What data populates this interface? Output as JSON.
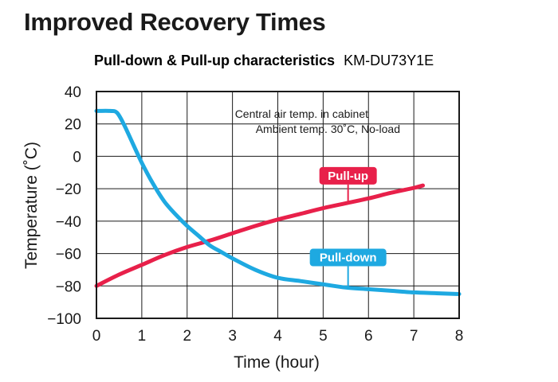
{
  "page_title": "Improved Recovery Times",
  "chart_data": {
    "type": "line",
    "title": "Pull-down & Pull-up characteristics",
    "model": "KM-DU73Y1E",
    "xlabel": "Time (hour)",
    "ylabel": "Temperature (˚C)",
    "xlim": [
      0,
      8
    ],
    "ylim": [
      -100,
      40
    ],
    "xticks": [
      "0",
      "1",
      "2",
      "3",
      "4",
      "5",
      "6",
      "7",
      "8"
    ],
    "yticks": [
      "40",
      "20",
      "0",
      "−20",
      "−40",
      "−60",
      "−80",
      "−100"
    ],
    "grid": true,
    "notes": [
      "Central air temp. in cabinet",
      "Ambient temp. 30˚C, No-load"
    ],
    "series": [
      {
        "name": "Pull-up",
        "color": "#e8204a",
        "x": [
          0,
          0.5,
          1,
          1.5,
          2,
          2.5,
          3,
          3.5,
          4,
          4.5,
          5,
          5.5,
          6,
          6.5,
          7,
          7.2
        ],
        "y": [
          -80,
          -73,
          -67,
          -61,
          -56,
          -52,
          -47.5,
          -43,
          -39,
          -35.5,
          -32,
          -29,
          -26,
          -22.5,
          -19.5,
          -18
        ]
      },
      {
        "name": "Pull-down",
        "color": "#1ea9e1",
        "x": [
          0,
          0.3,
          0.45,
          0.6,
          0.8,
          1,
          1.25,
          1.5,
          1.75,
          2,
          2.25,
          2.5,
          2.75,
          3,
          3.5,
          4,
          4.5,
          5,
          5.5,
          6,
          6.5,
          7,
          7.5,
          8
        ],
        "y": [
          28,
          28,
          27,
          20,
          8,
          -4,
          -17,
          -28,
          -36,
          -43,
          -49,
          -55,
          -59,
          -63,
          -70,
          -75,
          -77,
          -79,
          -81,
          -82,
          -83,
          -84,
          -84.5,
          -85
        ]
      }
    ],
    "tags": [
      {
        "series": "Pull-up",
        "label": "Pull-up",
        "at_x": 5.55
      },
      {
        "series": "Pull-down",
        "label": "Pull-down",
        "at_x": 5.55
      }
    ]
  }
}
